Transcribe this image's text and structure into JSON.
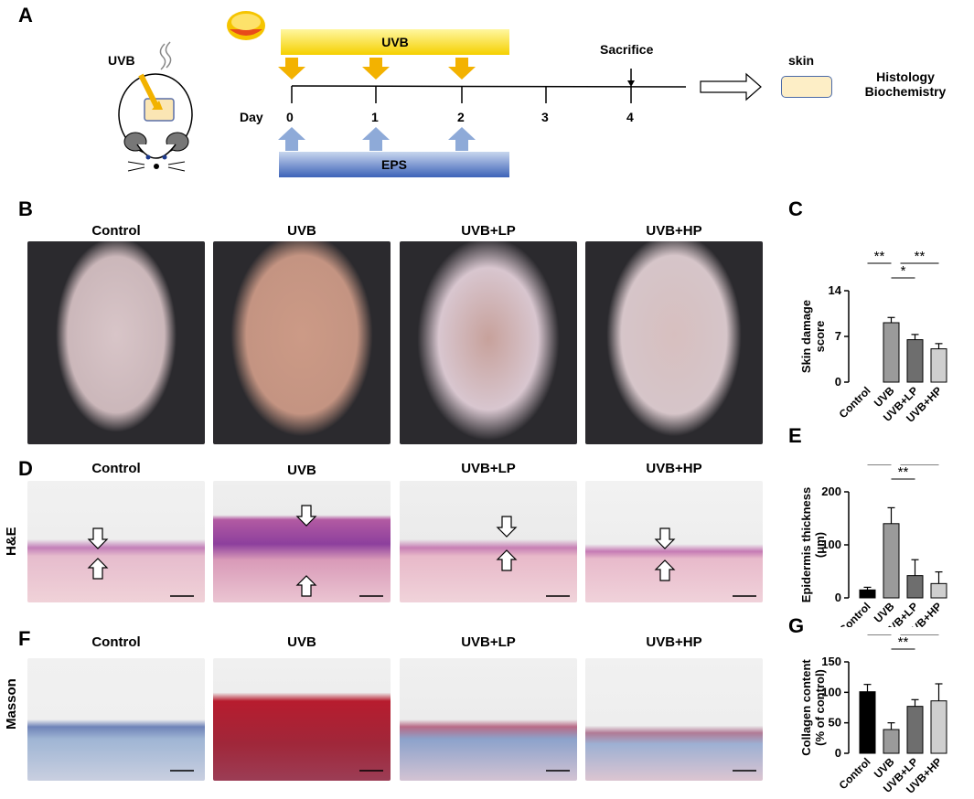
{
  "panels": {
    "A": "A",
    "B": "B",
    "C": "C",
    "D": "D",
    "E": "E",
    "F": "F",
    "G": "G"
  },
  "schematic": {
    "uvb_mouse_label": "UVB",
    "uvb_bar_label": "UVB",
    "eps_bar_label": "EPS",
    "day_label": "Day",
    "days": [
      "0",
      "1",
      "2",
      "3",
      "4"
    ],
    "sacrifice_label": "Sacrifice",
    "skin_label": "skin",
    "outcome_line1": "Histology",
    "outcome_line2": "Biochemistry"
  },
  "groups": [
    "Control",
    "UVB",
    "UVB+LP",
    "UVB+HP"
  ],
  "row_labels": {
    "he": "H&E",
    "masson": "Masson"
  },
  "colors": {
    "control": "#000000",
    "uvb": "#9a9a9a",
    "lp": "#6e6e6e",
    "hp": "#cfcfcf",
    "uvb_bar": "#f5d000",
    "eps_bar": "#3d63b8",
    "arrow_orange": "#f3b200",
    "arrow_blue": "#8eaad8"
  },
  "chart_data": [
    {
      "panel": "C",
      "type": "bar",
      "categories": [
        "Control",
        "UVB",
        "UVB+LP",
        "UVB+HP"
      ],
      "values": [
        0,
        9.1,
        6.5,
        5.1
      ],
      "errors": [
        0,
        0.8,
        0.8,
        0.8
      ],
      "ylabel": "Skin damage score",
      "ylim": [
        0,
        14
      ],
      "yticks": [
        "0",
        "7",
        "14"
      ],
      "significance": [
        {
          "pair": [
            "Control",
            "UVB"
          ],
          "label": "**"
        },
        {
          "pair": [
            "UVB",
            "UVB+LP"
          ],
          "label": "*"
        },
        {
          "pair": [
            "UVB",
            "UVB+HP"
          ],
          "label": "**"
        }
      ]
    },
    {
      "panel": "E",
      "type": "bar",
      "categories": [
        "Control",
        "UVB",
        "UVB+LP",
        "UVB+HP"
      ],
      "values": [
        15,
        140,
        42,
        27
      ],
      "errors": [
        5,
        30,
        30,
        22
      ],
      "ylabel": "Epidermis thickness (μm)",
      "ylim": [
        0,
        200
      ],
      "yticks": [
        "0",
        "100",
        "200"
      ],
      "significance": [
        {
          "pair": [
            "Control",
            "UVB"
          ],
          "label": "**"
        },
        {
          "pair": [
            "UVB",
            "UVB+LP"
          ],
          "label": "**"
        },
        {
          "pair": [
            "UVB",
            "UVB+HP"
          ],
          "label": "**"
        }
      ]
    },
    {
      "panel": "G",
      "type": "bar",
      "categories": [
        "Control",
        "UVB",
        "UVB+LP",
        "UVB+HP"
      ],
      "values": [
        101,
        39,
        77,
        86
      ],
      "errors": [
        12,
        11,
        11,
        28
      ],
      "ylabel": "Collagen content (% of control)",
      "ylim": [
        0,
        150
      ],
      "yticks": [
        "0",
        "50",
        "100",
        "150"
      ],
      "significance": [
        {
          "pair": [
            "Control",
            "UVB"
          ],
          "label": "**"
        },
        {
          "pair": [
            "UVB",
            "UVB+LP"
          ],
          "label": "**"
        },
        {
          "pair": [
            "UVB",
            "UVB+HP"
          ],
          "label": "**"
        }
      ]
    }
  ]
}
